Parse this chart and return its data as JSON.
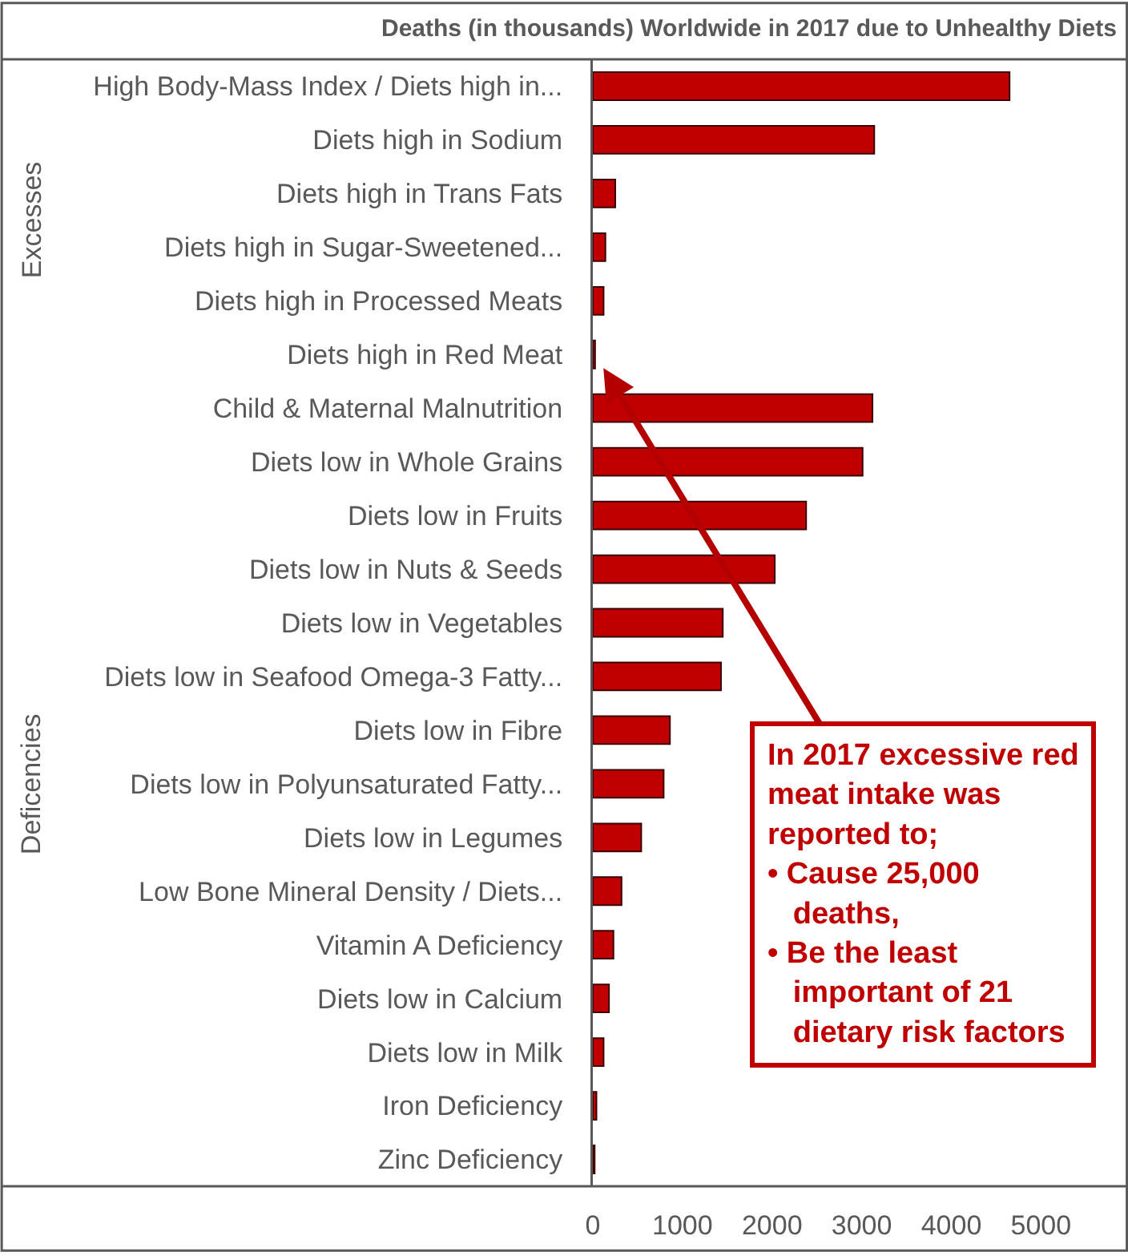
{
  "chart_data": {
    "type": "bar",
    "orientation": "horizontal",
    "title": "Deaths (in thousands) Worldwide in 2017 due to Unhealthy Diets",
    "categories": [
      "High Body-Mass Index / Diets high in...",
      "Diets high in Sodium",
      "Diets high in Trans Fats",
      "Diets high in Sugar-Sweetened...",
      "Diets high in Processed Meats",
      "Diets high in Red Meat",
      "Child & Maternal Malnutrition",
      "Diets low in Whole Grains",
      "Diets low in Fruits",
      "Diets low in Nuts & Seeds",
      "Diets low in Vegetables",
      "Diets low in Seafood Omega-3 Fatty...",
      "Diets low in Fibre",
      "Diets low in Polyunsaturated Fatty...",
      "Diets low in Legumes",
      "Low Bone Mineral Density / Diets...",
      "Vitamin A Deficiency",
      "Diets low in Calcium",
      "Diets low in Milk",
      "Iron Deficiency",
      "Zinc Deficiency"
    ],
    "values": [
      4650,
      3140,
      250,
      140,
      120,
      25,
      3120,
      3010,
      2380,
      2030,
      1450,
      1430,
      860,
      790,
      540,
      320,
      230,
      180,
      120,
      40,
      20
    ],
    "color": "#c00000",
    "xlim": [
      0,
      5900
    ],
    "xticks": [
      0,
      1000,
      2000,
      3000,
      4000,
      5000
    ],
    "grid": false,
    "annotations": [
      "Excesses",
      "Deficencies",
      {
        "text": "In 2017 excessive red\nmeat intake was\nreported to;\n• Cause 25,000\n   deaths,\n• Be the least\n   important of 21\n   dietary risk factors",
        "x": 25,
        "y": "Diets high in Red Meat"
      }
    ]
  }
}
